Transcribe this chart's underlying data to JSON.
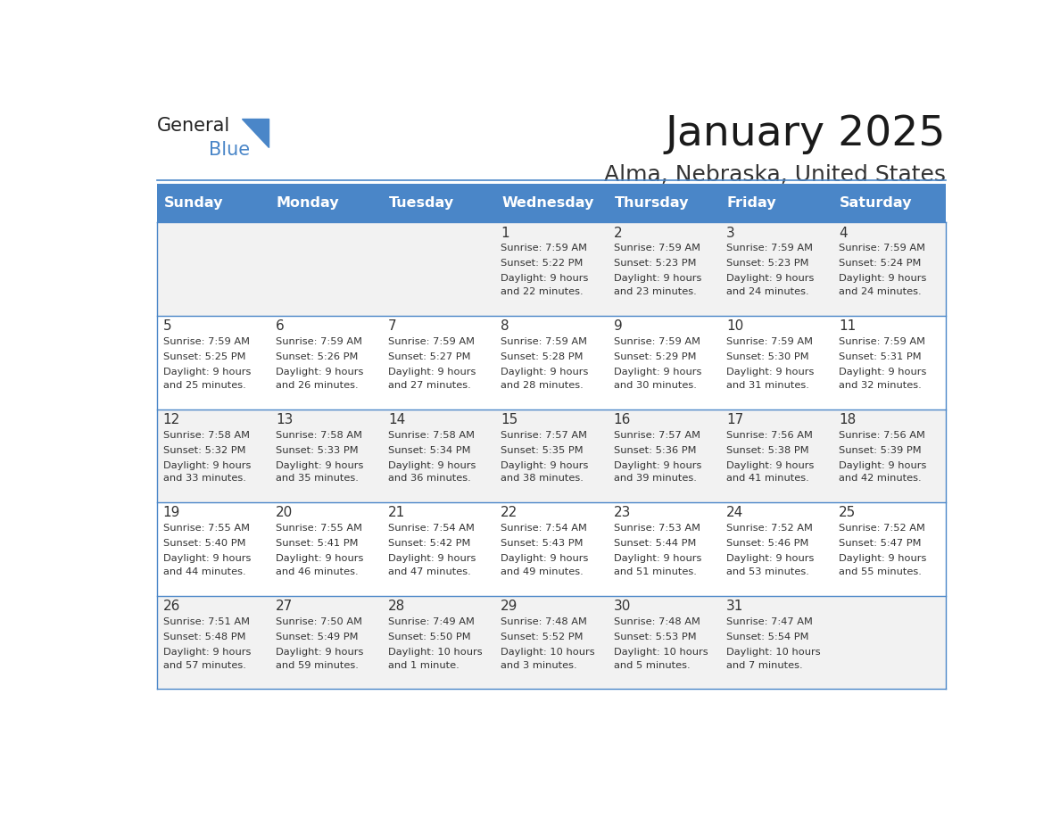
{
  "title": "January 2025",
  "subtitle": "Alma, Nebraska, United States",
  "header_bg": "#4a86c8",
  "header_text_color": "#ffffff",
  "day_names": [
    "Sunday",
    "Monday",
    "Tuesday",
    "Wednesday",
    "Thursday",
    "Friday",
    "Saturday"
  ],
  "cell_bg_even": "#f2f2f2",
  "cell_bg_odd": "#ffffff",
  "border_color": "#4a86c8",
  "text_color": "#333333",
  "day_num_color": "#333333",
  "days": [
    {
      "date": 1,
      "col": 3,
      "row": 0,
      "sunrise": "7:59 AM",
      "sunset": "5:22 PM",
      "daylight": "9 hours and 22 minutes."
    },
    {
      "date": 2,
      "col": 4,
      "row": 0,
      "sunrise": "7:59 AM",
      "sunset": "5:23 PM",
      "daylight": "9 hours and 23 minutes."
    },
    {
      "date": 3,
      "col": 5,
      "row": 0,
      "sunrise": "7:59 AM",
      "sunset": "5:23 PM",
      "daylight": "9 hours and 24 minutes."
    },
    {
      "date": 4,
      "col": 6,
      "row": 0,
      "sunrise": "7:59 AM",
      "sunset": "5:24 PM",
      "daylight": "9 hours and 24 minutes."
    },
    {
      "date": 5,
      "col": 0,
      "row": 1,
      "sunrise": "7:59 AM",
      "sunset": "5:25 PM",
      "daylight": "9 hours and 25 minutes."
    },
    {
      "date": 6,
      "col": 1,
      "row": 1,
      "sunrise": "7:59 AM",
      "sunset": "5:26 PM",
      "daylight": "9 hours and 26 minutes."
    },
    {
      "date": 7,
      "col": 2,
      "row": 1,
      "sunrise": "7:59 AM",
      "sunset": "5:27 PM",
      "daylight": "9 hours and 27 minutes."
    },
    {
      "date": 8,
      "col": 3,
      "row": 1,
      "sunrise": "7:59 AM",
      "sunset": "5:28 PM",
      "daylight": "9 hours and 28 minutes."
    },
    {
      "date": 9,
      "col": 4,
      "row": 1,
      "sunrise": "7:59 AM",
      "sunset": "5:29 PM",
      "daylight": "9 hours and 30 minutes."
    },
    {
      "date": 10,
      "col": 5,
      "row": 1,
      "sunrise": "7:59 AM",
      "sunset": "5:30 PM",
      "daylight": "9 hours and 31 minutes."
    },
    {
      "date": 11,
      "col": 6,
      "row": 1,
      "sunrise": "7:59 AM",
      "sunset": "5:31 PM",
      "daylight": "9 hours and 32 minutes."
    },
    {
      "date": 12,
      "col": 0,
      "row": 2,
      "sunrise": "7:58 AM",
      "sunset": "5:32 PM",
      "daylight": "9 hours and 33 minutes."
    },
    {
      "date": 13,
      "col": 1,
      "row": 2,
      "sunrise": "7:58 AM",
      "sunset": "5:33 PM",
      "daylight": "9 hours and 35 minutes."
    },
    {
      "date": 14,
      "col": 2,
      "row": 2,
      "sunrise": "7:58 AM",
      "sunset": "5:34 PM",
      "daylight": "9 hours and 36 minutes."
    },
    {
      "date": 15,
      "col": 3,
      "row": 2,
      "sunrise": "7:57 AM",
      "sunset": "5:35 PM",
      "daylight": "9 hours and 38 minutes."
    },
    {
      "date": 16,
      "col": 4,
      "row": 2,
      "sunrise": "7:57 AM",
      "sunset": "5:36 PM",
      "daylight": "9 hours and 39 minutes."
    },
    {
      "date": 17,
      "col": 5,
      "row": 2,
      "sunrise": "7:56 AM",
      "sunset": "5:38 PM",
      "daylight": "9 hours and 41 minutes."
    },
    {
      "date": 18,
      "col": 6,
      "row": 2,
      "sunrise": "7:56 AM",
      "sunset": "5:39 PM",
      "daylight": "9 hours and 42 minutes."
    },
    {
      "date": 19,
      "col": 0,
      "row": 3,
      "sunrise": "7:55 AM",
      "sunset": "5:40 PM",
      "daylight": "9 hours and 44 minutes."
    },
    {
      "date": 20,
      "col": 1,
      "row": 3,
      "sunrise": "7:55 AM",
      "sunset": "5:41 PM",
      "daylight": "9 hours and 46 minutes."
    },
    {
      "date": 21,
      "col": 2,
      "row": 3,
      "sunrise": "7:54 AM",
      "sunset": "5:42 PM",
      "daylight": "9 hours and 47 minutes."
    },
    {
      "date": 22,
      "col": 3,
      "row": 3,
      "sunrise": "7:54 AM",
      "sunset": "5:43 PM",
      "daylight": "9 hours and 49 minutes."
    },
    {
      "date": 23,
      "col": 4,
      "row": 3,
      "sunrise": "7:53 AM",
      "sunset": "5:44 PM",
      "daylight": "9 hours and 51 minutes."
    },
    {
      "date": 24,
      "col": 5,
      "row": 3,
      "sunrise": "7:52 AM",
      "sunset": "5:46 PM",
      "daylight": "9 hours and 53 minutes."
    },
    {
      "date": 25,
      "col": 6,
      "row": 3,
      "sunrise": "7:52 AM",
      "sunset": "5:47 PM",
      "daylight": "9 hours and 55 minutes."
    },
    {
      "date": 26,
      "col": 0,
      "row": 4,
      "sunrise": "7:51 AM",
      "sunset": "5:48 PM",
      "daylight": "9 hours and 57 minutes."
    },
    {
      "date": 27,
      "col": 1,
      "row": 4,
      "sunrise": "7:50 AM",
      "sunset": "5:49 PM",
      "daylight": "9 hours and 59 minutes."
    },
    {
      "date": 28,
      "col": 2,
      "row": 4,
      "sunrise": "7:49 AM",
      "sunset": "5:50 PM",
      "daylight": "10 hours and 1 minute."
    },
    {
      "date": 29,
      "col": 3,
      "row": 4,
      "sunrise": "7:48 AM",
      "sunset": "5:52 PM",
      "daylight": "10 hours and 3 minutes."
    },
    {
      "date": 30,
      "col": 4,
      "row": 4,
      "sunrise": "7:48 AM",
      "sunset": "5:53 PM",
      "daylight": "10 hours and 5 minutes."
    },
    {
      "date": 31,
      "col": 5,
      "row": 4,
      "sunrise": "7:47 AM",
      "sunset": "5:54 PM",
      "daylight": "10 hours and 7 minutes."
    }
  ]
}
